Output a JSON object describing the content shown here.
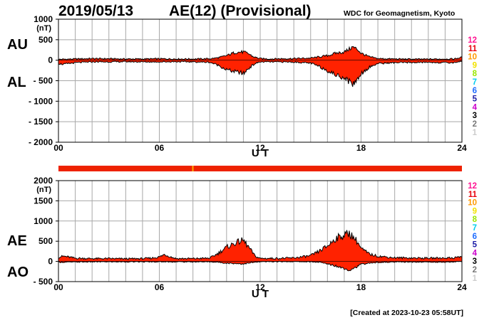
{
  "header": {
    "date": "2019/05/13",
    "title": "AE(12) (Provisional)",
    "org": "WDC for Geomagnetism, Kyoto"
  },
  "footer": {
    "created": "[Created at 2023-10-23 05:58UT]"
  },
  "legend": {
    "items": [
      {
        "label": "12",
        "color": "#ff1493"
      },
      {
        "label": "11",
        "color": "#e8000b"
      },
      {
        "label": "10",
        "color": "#ff9900"
      },
      {
        "label": "9",
        "color": "#f2e200"
      },
      {
        "label": "8",
        "color": "#99e600"
      },
      {
        "label": "7",
        "color": "#00ccee"
      },
      {
        "label": "6",
        "color": "#1e6cff"
      },
      {
        "label": "5",
        "color": "#1a1aa6"
      },
      {
        "label": "4",
        "color": "#cc00cc"
      },
      {
        "label": "3",
        "color": "#000000"
      },
      {
        "label": "2",
        "color": "#777777"
      },
      {
        "label": "1",
        "color": "#cccccc"
      }
    ]
  },
  "colors": {
    "fill": "#ff2200",
    "outline": "#000000",
    "grid": "#a8a8a8",
    "status_bar": "#ee2200"
  },
  "status_bar": {
    "color": "#ee2200",
    "mark_hour": 7.95,
    "mark_color": "#ffaa00"
  },
  "chart_data": [
    {
      "type": "area",
      "name": "AU/AL",
      "labels": {
        "upper": "AU",
        "lower": "AL"
      },
      "unit": "(nT)",
      "xlabel": "U T",
      "xlim": [
        0,
        24
      ],
      "ylim": [
        -2000,
        1000
      ],
      "yticks": [
        "1000",
        "500",
        "0",
        "- 500",
        "- 1000",
        "- 1500",
        "- 2000"
      ],
      "ytick_values": [
        1000,
        500,
        0,
        -500,
        -1000,
        -1500,
        -2000
      ],
      "xticks": [
        "00",
        "06",
        "12",
        "18",
        "24"
      ],
      "xtick_values": [
        0,
        6,
        12,
        18,
        24
      ],
      "series": [
        {
          "name": "AU",
          "x": [
            0,
            0.5,
            1,
            2,
            3,
            4,
            5,
            6,
            7,
            8,
            9,
            9.5,
            10,
            10.5,
            11,
            11.3,
            11.6,
            12,
            12.5,
            13,
            14,
            15,
            15.5,
            16,
            16.5,
            17,
            17.3,
            17.5,
            17.8,
            18,
            18.5,
            19,
            20,
            21,
            22,
            23,
            23.5,
            24
          ],
          "values": [
            20,
            25,
            30,
            40,
            35,
            30,
            30,
            35,
            30,
            30,
            35,
            60,
            110,
            190,
            200,
            160,
            80,
            40,
            30,
            35,
            40,
            50,
            80,
            110,
            170,
            200,
            270,
            320,
            260,
            170,
            80,
            40,
            30,
            25,
            25,
            30,
            30,
            70
          ]
        },
        {
          "name": "AL",
          "x": [
            0,
            0.3,
            1,
            2,
            3,
            4,
            5,
            6,
            7,
            8,
            9,
            9.5,
            10,
            10.5,
            10.8,
            11,
            11.3,
            11.7,
            12,
            12.5,
            13,
            14,
            15,
            15.5,
            16,
            16.5,
            17,
            17.3,
            17.5,
            17.8,
            18,
            18.5,
            19,
            20,
            21,
            22,
            23,
            23.5,
            24
          ],
          "values": [
            -80,
            -100,
            -60,
            -40,
            -40,
            -35,
            -40,
            -40,
            -35,
            -40,
            -50,
            -120,
            -230,
            -280,
            -300,
            -330,
            -200,
            -80,
            -40,
            -40,
            -40,
            -45,
            -70,
            -150,
            -250,
            -360,
            -420,
            -520,
            -580,
            -460,
            -320,
            -170,
            -80,
            -60,
            -55,
            -50,
            -60,
            -60,
            -20
          ]
        }
      ]
    },
    {
      "type": "area",
      "name": "AE/AO",
      "labels": {
        "upper": "AE",
        "lower": "AO"
      },
      "unit": "(nT)",
      "xlabel": "U T",
      "xlim": [
        0,
        24
      ],
      "ylim": [
        -500,
        2000
      ],
      "yticks": [
        "2000",
        "1500",
        "1000",
        "500",
        "0",
        "- 500"
      ],
      "ytick_values": [
        2000,
        1500,
        1000,
        500,
        0,
        -500
      ],
      "xticks": [
        "00",
        "06",
        "12",
        "18",
        "24"
      ],
      "xtick_values": [
        0,
        6,
        12,
        18,
        24
      ],
      "series": [
        {
          "name": "AE",
          "x": [
            0,
            0.3,
            1,
            2,
            3,
            4,
            5,
            5.5,
            6,
            6.3,
            6.7,
            7,
            8,
            9,
            9.5,
            10,
            10.5,
            10.8,
            11,
            11.3,
            11.7,
            12,
            13,
            14,
            15,
            15.5,
            16,
            16.5,
            17,
            17.3,
            17.5,
            17.8,
            18,
            18.5,
            19,
            20,
            21,
            22,
            23,
            23.5,
            24
          ],
          "values": [
            100,
            130,
            80,
            70,
            70,
            65,
            70,
            80,
            110,
            170,
            110,
            70,
            70,
            80,
            200,
            350,
            450,
            500,
            520,
            360,
            130,
            75,
            75,
            85,
            140,
            250,
            380,
            570,
            650,
            700,
            620,
            480,
            320,
            180,
            130,
            90,
            85,
            80,
            85,
            90,
            120
          ]
        },
        {
          "name": "AO",
          "x": [
            0,
            1,
            2,
            3,
            4,
            5,
            6,
            7,
            8,
            9,
            9.5,
            10,
            10.5,
            11,
            11.5,
            12,
            13,
            14,
            15,
            15.5,
            16,
            16.5,
            17,
            17.3,
            17.5,
            17.8,
            18,
            18.5,
            19,
            20,
            21,
            22,
            23,
            24
          ],
          "values": [
            -20,
            -15,
            -10,
            -10,
            -10,
            -10,
            -10,
            -10,
            -10,
            -10,
            -20,
            -40,
            -50,
            -60,
            -30,
            -10,
            -5,
            -5,
            -10,
            -20,
            -60,
            -110,
            -170,
            -210,
            -180,
            -120,
            -70,
            -40,
            -25,
            -15,
            -15,
            -15,
            -20,
            0
          ]
        }
      ]
    }
  ]
}
